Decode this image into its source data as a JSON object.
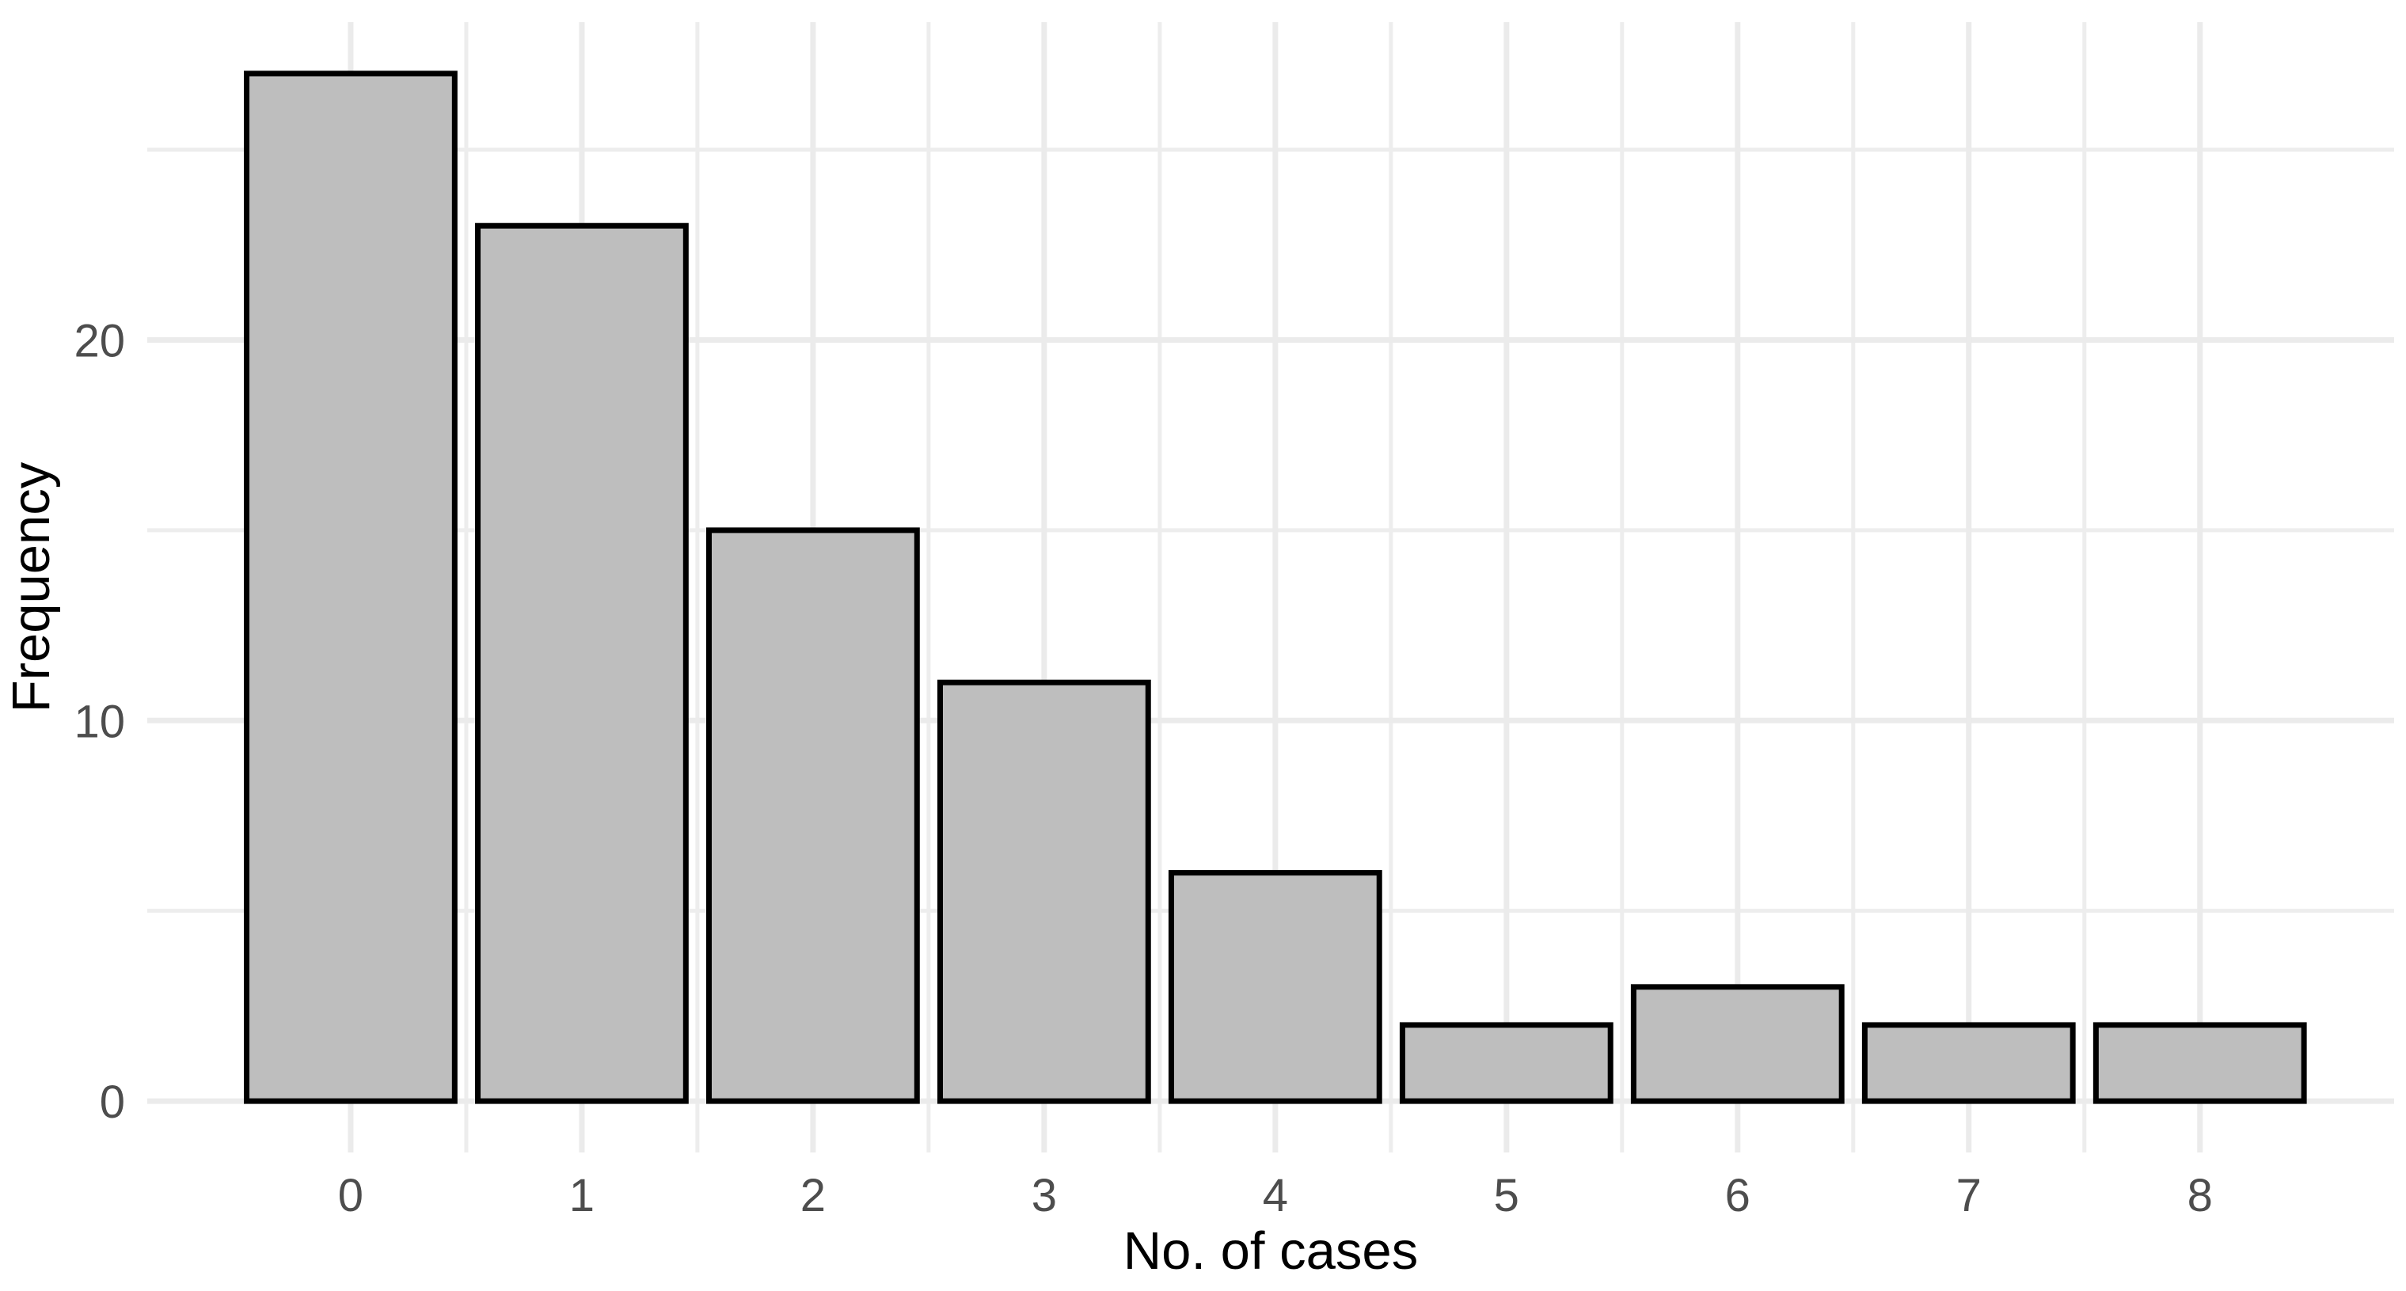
{
  "chart_data": {
    "type": "bar",
    "title": "",
    "xlabel": "No. of cases",
    "ylabel": "Frequency",
    "categories": [
      0,
      1,
      2,
      3,
      4,
      5,
      6,
      7,
      8
    ],
    "values": [
      27,
      23,
      15,
      11,
      6,
      2,
      3,
      2,
      2
    ],
    "x_tick_labels": [
      "0",
      "1",
      "2",
      "3",
      "4",
      "5",
      "6",
      "7",
      "8"
    ],
    "y_tick_labels": [
      "0",
      "10",
      "20"
    ],
    "y_ticks": [
      0,
      10,
      20
    ],
    "y_minor_gridlines": [
      5,
      15,
      25
    ],
    "x_major_gridlines": [
      0,
      1,
      2,
      3,
      4,
      5,
      6,
      7,
      8
    ],
    "x_minor_gridlines": [
      0.5,
      1.5,
      2.5,
      3.5,
      4.5,
      5.5,
      6.5,
      7.5
    ],
    "xlim": [
      -0.88,
      8.84
    ],
    "ylim": [
      -1.35,
      28.35
    ],
    "bar_width": 0.9,
    "grid": true,
    "legend": false,
    "style": {
      "background": "#FFFFFF",
      "bar_fill": "#BEBEBE",
      "bar_stroke": "#000000",
      "grid_major_color": "#EBEBEB",
      "grid_minor_color": "#EDEDED",
      "tick_label_color": "#4D4D4D",
      "axis_title_color": "#000000"
    }
  }
}
